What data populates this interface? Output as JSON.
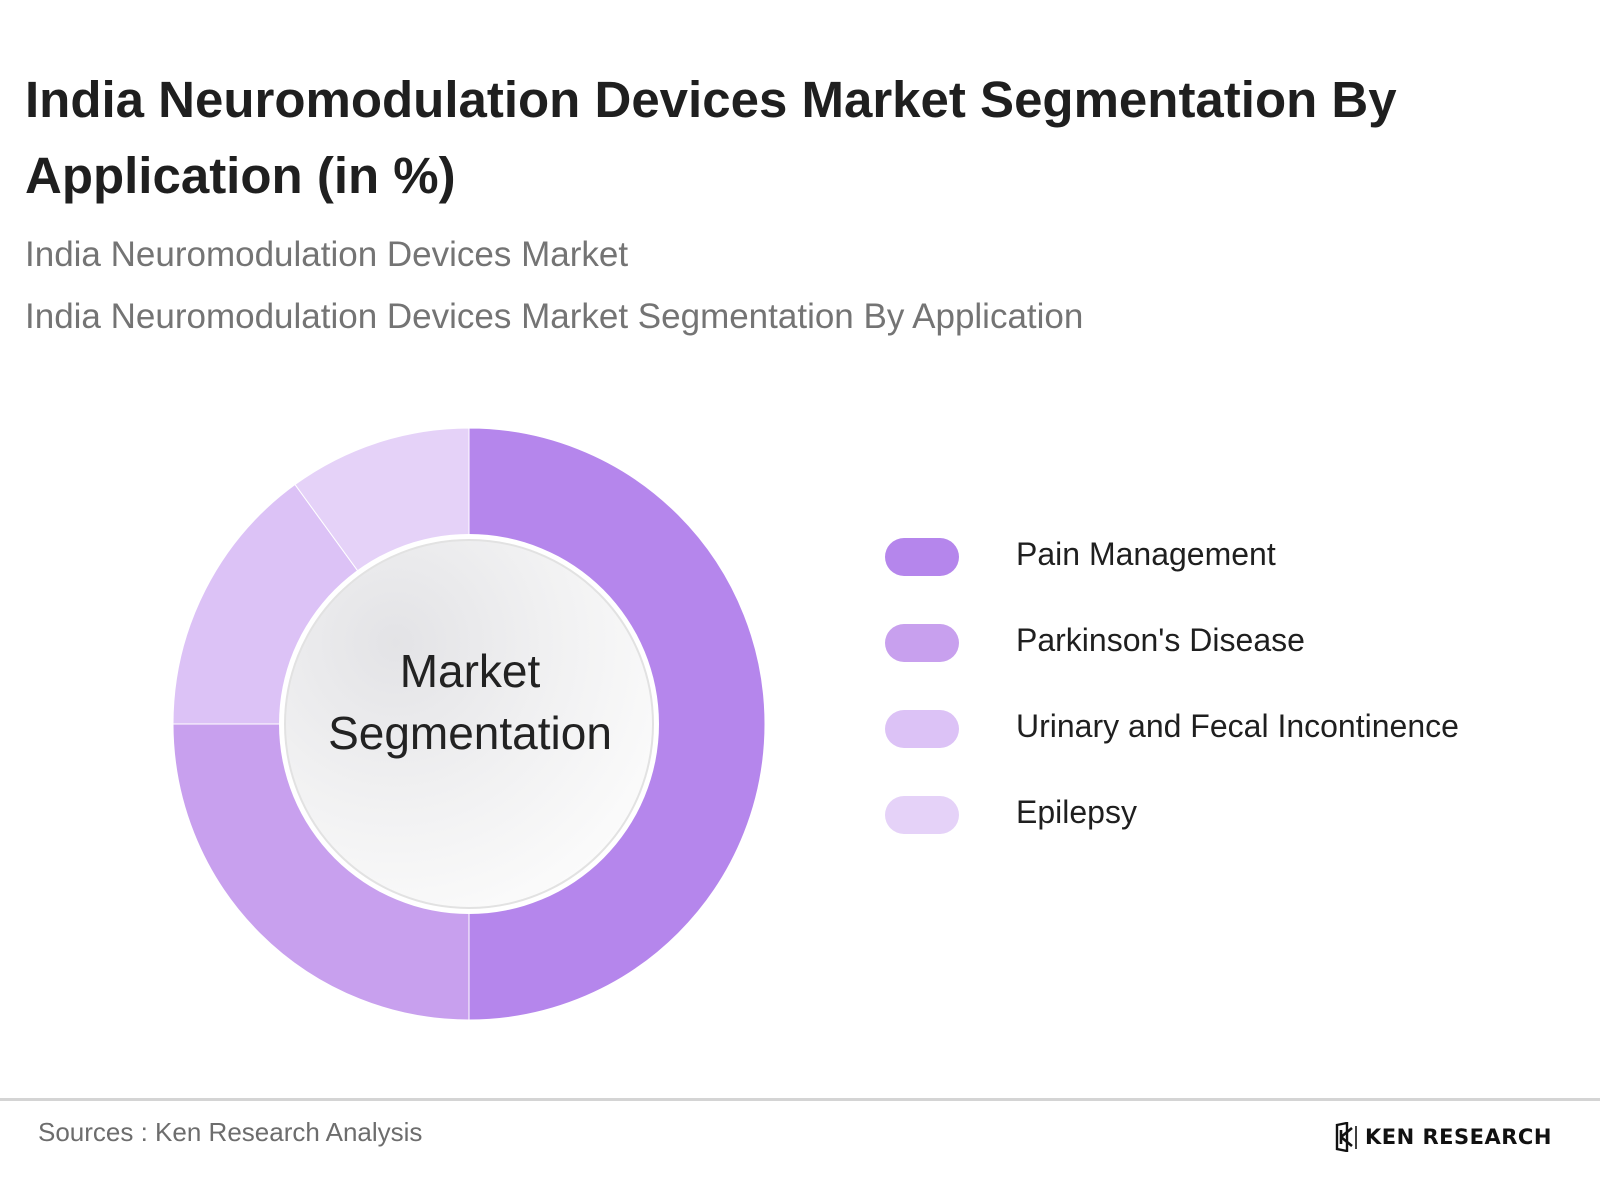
{
  "title": "India Neuromodulation Devices Market Segmentation By Application (in %)",
  "subtitles": [
    "India Neuromodulation Devices Market",
    "India Neuromodulation Devices Market Segmentation By Application"
  ],
  "center_label": {
    "line1": "Market",
    "line2": "Segmentation"
  },
  "footer": {
    "source": "Sources : Ken Research Analysis",
    "brand": "KEN RESEARCH"
  },
  "chart_data": {
    "type": "pie",
    "variant": "donut",
    "categories": [
      "Pain Management",
      "Parkinson's Disease",
      "Urinary and Fecal Incontinence",
      "Epilepsy"
    ],
    "values": [
      50,
      25,
      15,
      10
    ],
    "colors": [
      "#b586ec",
      "#c8a0ee",
      "#dcc2f6",
      "#e5d2f8"
    ],
    "legend_position": "right"
  }
}
